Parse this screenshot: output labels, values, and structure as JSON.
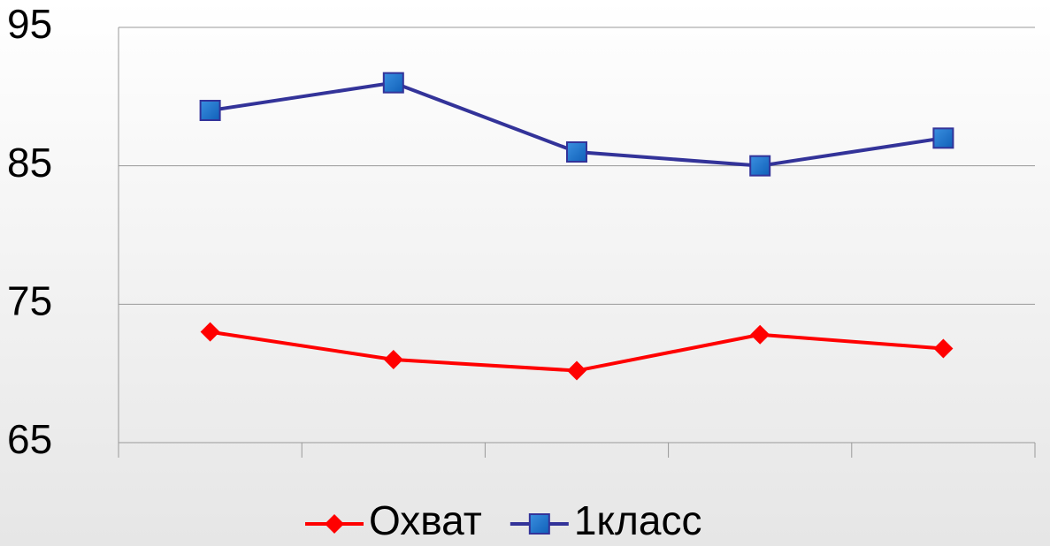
{
  "chart_data": {
    "type": "line",
    "categories": [
      null,
      null,
      null,
      null,
      null
    ],
    "series": [
      {
        "name": "Охват",
        "color": "#ff0000",
        "marker": "diamond",
        "values": [
          73,
          71,
          70.2,
          72.8,
          71.8
        ]
      },
      {
        "name": "1класс",
        "color": "#333399",
        "marker": "square",
        "values": [
          89,
          91,
          86,
          85,
          87
        ]
      }
    ],
    "ylim": [
      65,
      95
    ],
    "yticks": [
      65,
      75,
      85,
      95
    ],
    "grid": true,
    "legend": "bottom"
  }
}
